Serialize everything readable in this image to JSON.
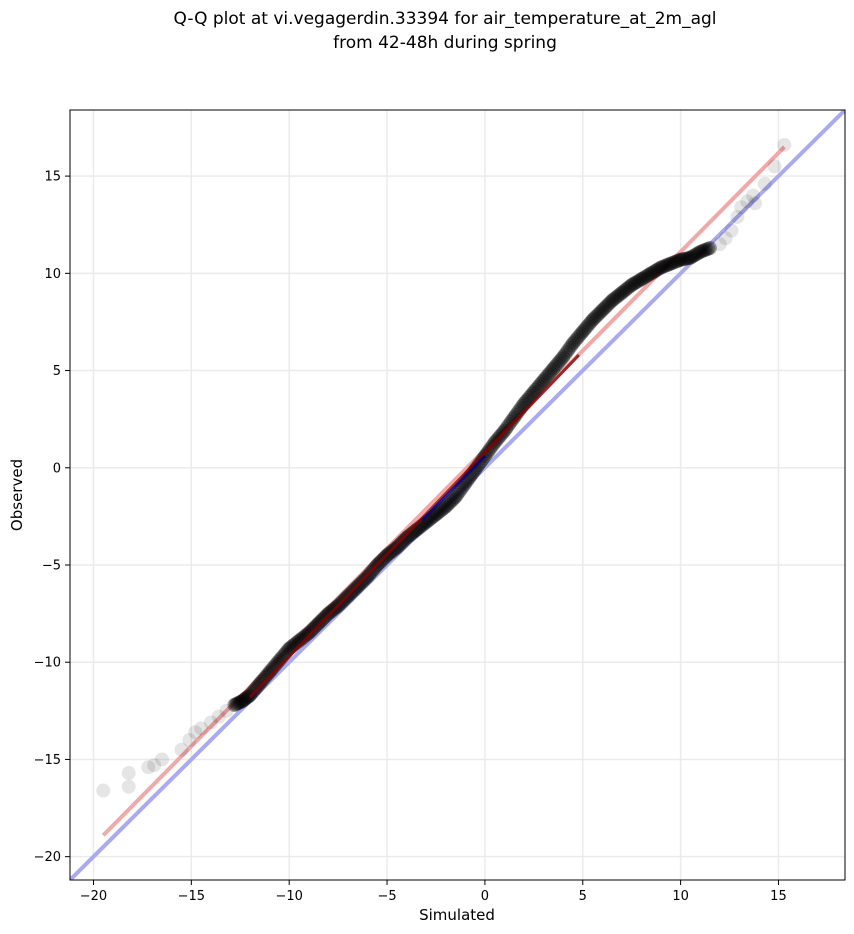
{
  "chart_data": {
    "type": "scatter",
    "title_line1": "Q-Q plot at vi.vegagerdin.33394 for air_temperature_at_2m_agl",
    "title_line2": "from 42-48h during spring",
    "xlabel": "Simulated",
    "ylabel": "Observed",
    "xlim": [
      -21.2,
      18.4
    ],
    "ylim": [
      -21.2,
      18.4
    ],
    "xticks": [
      -20,
      -15,
      -10,
      -5,
      0,
      5,
      10,
      15
    ],
    "yticks": [
      -20,
      -15,
      -10,
      -5,
      0,
      5,
      10,
      15
    ],
    "xtick_labels": [
      "−20",
      "−15",
      "−10",
      "−5",
      "0",
      "5",
      "10",
      "15"
    ],
    "ytick_labels": [
      "−20",
      "−15",
      "−10",
      "−5",
      "0",
      "5",
      "10",
      "15"
    ],
    "grid": true,
    "reference_line": {
      "slope": 1,
      "intercept": 0,
      "color": "#aaaaf0"
    },
    "fit_line": {
      "x": [
        -19.5,
        15.3
      ],
      "y": [
        -18.9,
        16.5
      ],
      "color": "#f2a8a8"
    },
    "inner_segments": [
      {
        "color": "#8b0000",
        "x": [
          -12.0,
          4.8
        ],
        "y": [
          -11.8,
          5.8
        ]
      },
      {
        "color": "#000080",
        "x": [
          -3.2,
          0.0
        ],
        "y": [
          -2.7,
          0.6
        ]
      }
    ],
    "quantiles": {
      "x": [
        -19.5,
        -18.2,
        -18.2,
        -17.2,
        -16.9,
        -16.5,
        -15.5,
        -15.1,
        -14.8,
        -14.5,
        -14.0,
        -13.6,
        -13.2,
        -12.8,
        -12.4,
        -12.0,
        -11.5,
        -11.0,
        -10.5,
        -10.0,
        -9.5,
        -9.0,
        -8.5,
        -8.0,
        -7.5,
        -7.0,
        -6.5,
        -6.0,
        -5.5,
        -5.0,
        -4.5,
        -4.0,
        -3.5,
        -3.0,
        -2.5,
        -2.0,
        -1.5,
        -1.0,
        -0.5,
        0.0,
        0.5,
        1.0,
        1.5,
        2.0,
        2.5,
        3.0,
        3.5,
        4.0,
        4.5,
        5.0,
        5.5,
        6.0,
        6.5,
        7.0,
        7.5,
        8.0,
        8.5,
        9.0,
        9.5,
        10.0,
        10.5,
        11.0,
        11.5,
        12.0,
        12.3,
        12.6,
        12.9,
        13.1,
        13.4,
        13.7,
        13.8,
        14.3,
        14.8,
        15.3
      ],
      "y": [
        -16.6,
        -16.4,
        -15.7,
        -15.4,
        -15.3,
        -15.0,
        -14.5,
        -14.0,
        -13.6,
        -13.4,
        -13.1,
        -12.8,
        -12.5,
        -12.2,
        -12.0,
        -11.7,
        -11.1,
        -10.5,
        -9.9,
        -9.3,
        -8.9,
        -8.5,
        -8.0,
        -7.5,
        -7.1,
        -6.6,
        -6.1,
        -5.6,
        -5.0,
        -4.5,
        -4.1,
        -3.6,
        -3.2,
        -2.8,
        -2.4,
        -2.0,
        -1.5,
        -0.8,
        -0.1,
        0.6,
        1.3,
        1.9,
        2.6,
        3.3,
        3.9,
        4.5,
        5.1,
        5.7,
        6.4,
        7.0,
        7.6,
        8.1,
        8.6,
        9.0,
        9.4,
        9.7,
        10.0,
        10.3,
        10.5,
        10.7,
        10.8,
        11.1,
        11.3,
        11.5,
        11.8,
        12.2,
        12.9,
        13.4,
        13.7,
        14.0,
        13.6,
        14.6,
        15.5,
        16.6
      ]
    }
  }
}
